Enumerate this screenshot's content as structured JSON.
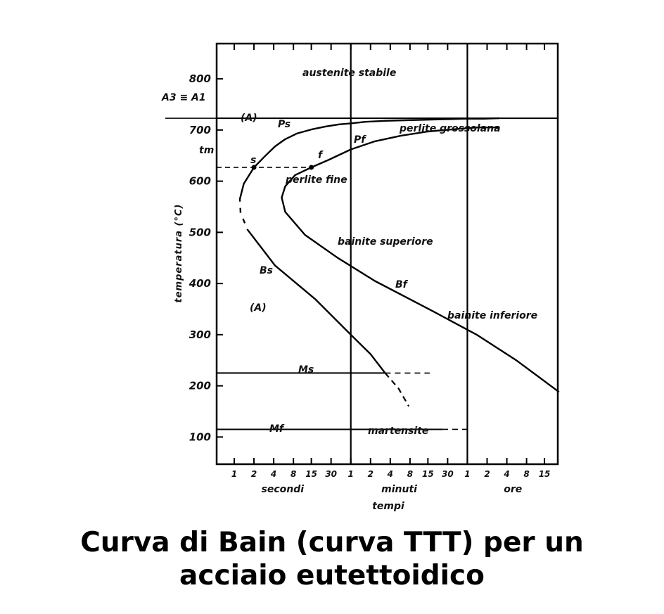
{
  "caption": {
    "line1": "Curva di Bain  (curva TTT) per un",
    "line2": "acciaio eutettoidico"
  },
  "chart_data": {
    "type": "line",
    "title": "",
    "ylabel": "temperatura  (°C)",
    "xlabel": "tempi",
    "ylim": [
      40,
      830
    ],
    "y_ticks": [
      100,
      200,
      300,
      400,
      500,
      600,
      700,
      800
    ],
    "y_tick_labels": [
      "100",
      "200",
      "300",
      "400",
      "500",
      "600",
      "700",
      "800"
    ],
    "x_groups": [
      {
        "unit": "secondi",
        "ticks": [
          "1",
          "2",
          "4",
          "8",
          "15",
          "30"
        ]
      },
      {
        "unit": "minuti",
        "ticks": [
          "1",
          "2",
          "4",
          "8",
          "15",
          "30"
        ]
      },
      {
        "unit": "ore",
        "ticks": [
          "1",
          "2",
          "4",
          "8",
          "15"
        ]
      }
    ],
    "x_scale": "log (time)",
    "grid": false,
    "reference_lines": [
      {
        "label": "A3 ≡ A1",
        "y": 723
      },
      {
        "label": "tm",
        "y": 627,
        "style": "dashed"
      },
      {
        "label": "Ms",
        "y": 225
      },
      {
        "label": "Mf",
        "y": 115
      }
    ],
    "series": [
      {
        "name": "Ps / Bs",
        "x_seconds": [
          2,
          3,
          4.2,
          6,
          9,
          15,
          25,
          40,
          60,
          100,
          200,
          400,
          800,
          1600,
          3200,
          6400,
          11000
        ],
        "y": [
          627,
          650,
          668,
          682,
          693,
          701,
          707,
          711,
          713,
          716,
          718,
          719,
          720,
          721,
          722,
          722,
          723
        ],
        "lower_branch": {
          "x_seconds": [
            2,
            1.4,
            1.22,
            1.25,
            1.6,
            4.2,
            17,
            60,
            120,
            200
          ],
          "y": [
            627,
            595,
            565,
            538,
            505,
            435,
            370,
            300,
            262,
            225
          ],
          "dashed_part": [
            0.95,
            505
          ]
        }
      },
      {
        "name": "Pf / Bf",
        "x_seconds": [
          15,
          28,
          60,
          140,
          350,
          900,
          2500,
          5000,
          11000
        ],
        "y": [
          627,
          642,
          662,
          678,
          689,
          697,
          702,
          705,
          705
        ],
        "lower_branch": {
          "x_seconds": [
            15,
            8.5,
            6,
            5.3,
            6,
            12,
            38,
            140,
            1100,
            5000,
            20000,
            90000
          ],
          "y": [
            627,
            612,
            590,
            568,
            540,
            495,
            450,
            405,
            345,
            300,
            250,
            188
          ]
        }
      }
    ],
    "annotations": [
      "austenite stabile",
      "(A)",
      "Ps",
      "perlite grossolana",
      "Pf",
      "tm",
      "s",
      "f",
      "perlite fine",
      "bainite superiore",
      "Bs",
      "Bf",
      "(A)",
      "bainite inferiore",
      "Ms",
      "Mf",
      "martensite"
    ]
  }
}
